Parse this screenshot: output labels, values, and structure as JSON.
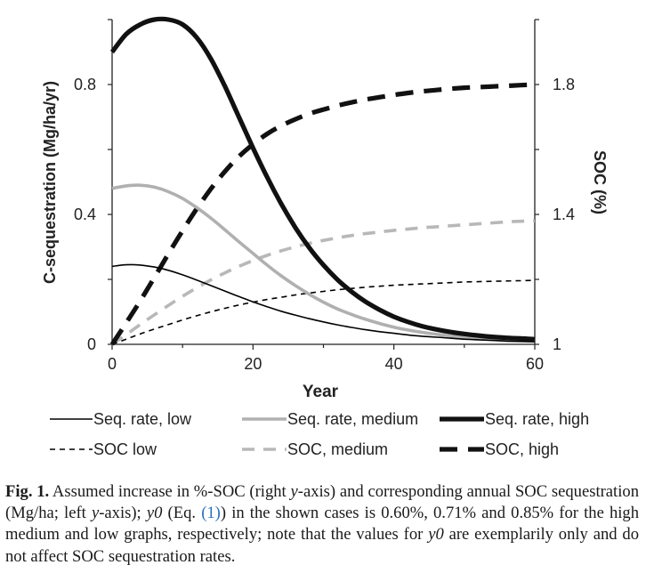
{
  "chart_data": {
    "type": "line",
    "xlabel": "Year",
    "ylabel_left": "C-sequestration (Mg/ha/yr)",
    "ylabel_right": "SOC (%)",
    "xlim": [
      0,
      60
    ],
    "ylim_left": [
      0,
      1.0
    ],
    "ylim_right": [
      1.0,
      2.0
    ],
    "x_ticks": [
      "0",
      "20",
      "40",
      "60"
    ],
    "y_left_ticks": [
      "0",
      "0.4",
      "0.8"
    ],
    "y_right_ticks": [
      "1",
      "1.4",
      "1.8"
    ],
    "grid": false,
    "legend_position": "bottom",
    "x": [
      0,
      2,
      4,
      6,
      8,
      10,
      12,
      14,
      16,
      18,
      20,
      22,
      24,
      26,
      28,
      30,
      32,
      34,
      36,
      38,
      40,
      42,
      44,
      46,
      48,
      50,
      52,
      54,
      56,
      58,
      60
    ],
    "series": [
      {
        "name": "Seq. rate, low",
        "axis": "left",
        "style": "solid",
        "color": "#000000",
        "weight": "thin",
        "values": [
          0.24,
          0.245,
          0.244,
          0.238,
          0.228,
          0.214,
          0.198,
          0.181,
          0.164,
          0.147,
          0.131,
          0.116,
          0.102,
          0.09,
          0.079,
          0.069,
          0.06,
          0.052,
          0.045,
          0.039,
          0.034,
          0.029,
          0.025,
          0.022,
          0.019,
          0.016,
          0.014,
          0.012,
          0.01,
          0.009,
          0.008
        ]
      },
      {
        "name": "Seq. rate, medium",
        "axis": "left",
        "style": "solid",
        "color": "#b0b0b0",
        "weight": "medium",
        "values": [
          0.48,
          0.488,
          0.49,
          0.484,
          0.47,
          0.449,
          0.421,
          0.389,
          0.353,
          0.316,
          0.28,
          0.244,
          0.211,
          0.181,
          0.154,
          0.13,
          0.109,
          0.092,
          0.077,
          0.064,
          0.053,
          0.044,
          0.037,
          0.031,
          0.026,
          0.022,
          0.018,
          0.015,
          0.013,
          0.011,
          0.01
        ]
      },
      {
        "name": "Seq. rate, high",
        "axis": "left",
        "style": "solid",
        "color": "#111111",
        "weight": "thick",
        "values": [
          0.9,
          0.955,
          0.985,
          1.0,
          1.0,
          0.985,
          0.945,
          0.88,
          0.795,
          0.7,
          0.605,
          0.515,
          0.433,
          0.36,
          0.297,
          0.244,
          0.199,
          0.162,
          0.131,
          0.106,
          0.085,
          0.069,
          0.056,
          0.046,
          0.038,
          0.032,
          0.027,
          0.023,
          0.02,
          0.018,
          0.016
        ]
      },
      {
        "name": "SOC low",
        "axis": "right",
        "style": "dashed",
        "color": "#000000",
        "weight": "thin",
        "values": [
          1.0,
          1.016,
          1.032,
          1.047,
          1.061,
          1.075,
          1.088,
          1.1,
          1.111,
          1.121,
          1.13,
          1.138,
          1.145,
          1.152,
          1.158,
          1.163,
          1.168,
          1.172,
          1.176,
          1.179,
          1.182,
          1.184,
          1.186,
          1.188,
          1.19,
          1.192,
          1.193,
          1.194,
          1.195,
          1.196,
          1.197
        ]
      },
      {
        "name": "SOC, medium",
        "axis": "right",
        "style": "dashed",
        "color": "#b8b8b8",
        "weight": "medium",
        "values": [
          1.0,
          1.03,
          1.061,
          1.091,
          1.12,
          1.148,
          1.174,
          1.198,
          1.22,
          1.24,
          1.258,
          1.274,
          1.288,
          1.3,
          1.311,
          1.32,
          1.328,
          1.335,
          1.341,
          1.346,
          1.351,
          1.355,
          1.359,
          1.362,
          1.365,
          1.368,
          1.371,
          1.374,
          1.377,
          1.379,
          1.38
        ]
      },
      {
        "name": "SOC, high",
        "axis": "right",
        "style": "dashed",
        "color": "#111111",
        "weight": "thick",
        "values": [
          1.0,
          1.066,
          1.134,
          1.206,
          1.279,
          1.35,
          1.417,
          1.478,
          1.532,
          1.578,
          1.616,
          1.648,
          1.673,
          1.693,
          1.71,
          1.723,
          1.735,
          1.745,
          1.754,
          1.761,
          1.768,
          1.774,
          1.779,
          1.783,
          1.787,
          1.79,
          1.792,
          1.794,
          1.796,
          1.798,
          1.8
        ]
      }
    ]
  },
  "caption": {
    "label": "Fig. 1.",
    "text_a": " Assumed increase in %-SOC (right ",
    "y1": "y",
    "text_b": "-axis) and corresponding annual SOC sequestration (Mg/ha; left ",
    "y2": "y",
    "text_c": "-axis); ",
    "y0a": "y0",
    "text_d": " (Eq. ",
    "eq_ref": "(1)",
    "text_e": ") in the shown cases is 0.60%, 0.71% and 0.85% for the high medium and low graphs, respectively; note that the values for ",
    "y0b": "y0",
    "text_f": " are exemplarily only and do not affect SOC sequestration rates."
  }
}
